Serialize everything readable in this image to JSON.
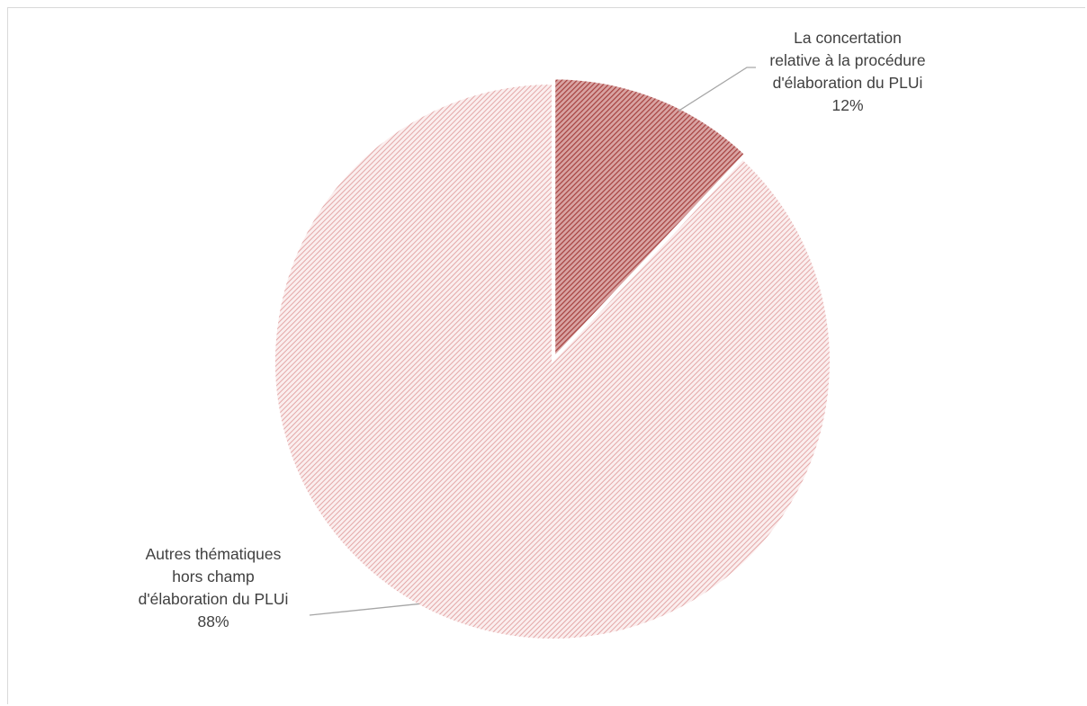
{
  "chart_data": {
    "type": "pie",
    "title": "",
    "slices": [
      {
        "label_lines": [
          "La concertation",
          "relative à la procédure",
          "d'élaboration du PLUi"
        ],
        "percent_label": "12%",
        "value": 12,
        "color": "#c0504d",
        "pattern": "dense diagonal hatch"
      },
      {
        "label_lines": [
          "Autres thématiques",
          "hors champ",
          "d'élaboration du PLUi"
        ],
        "percent_label": "88%",
        "value": 88,
        "color": "#e6a3a3",
        "pattern": "light diagonal hatch"
      }
    ],
    "start_angle": "12 o'clock",
    "direction": "clockwise",
    "exploded": true,
    "legend": "none"
  }
}
